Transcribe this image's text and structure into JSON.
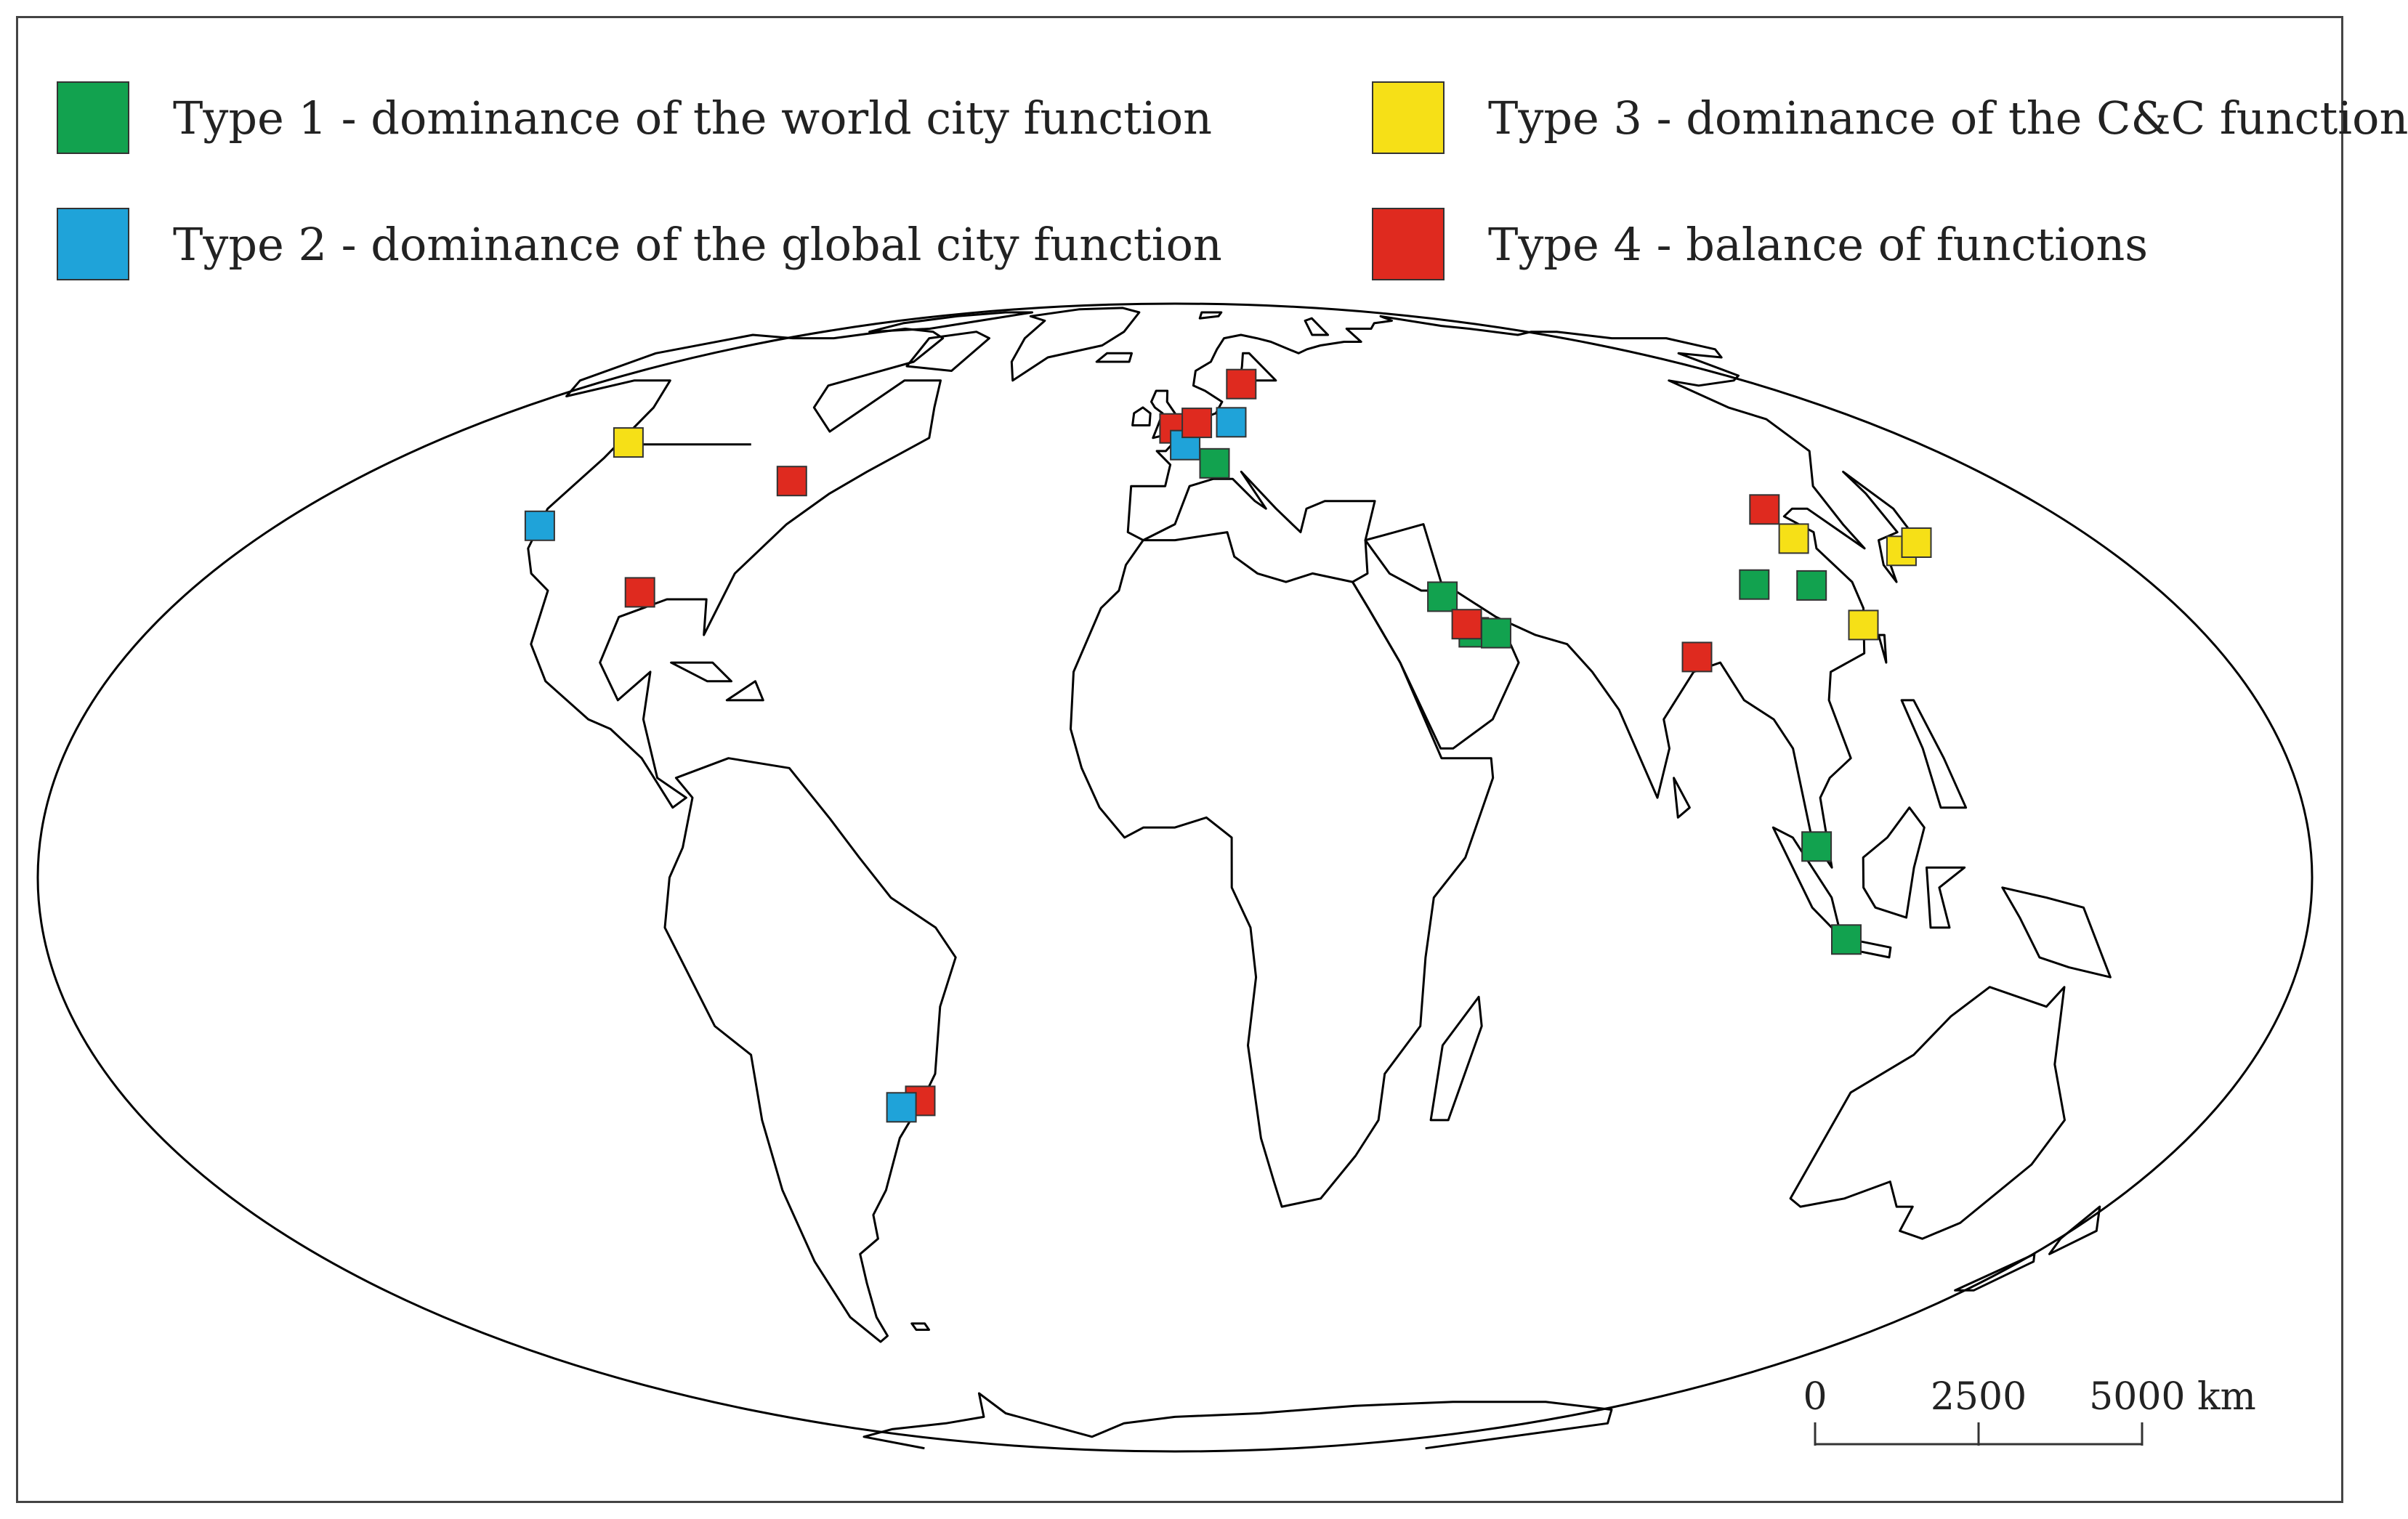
{
  "legend": {
    "items": [
      {
        "label": "Type 1 - dominance of the world city function",
        "color": "#12a24f"
      },
      {
        "label": "Type 2 - dominance of the global city function",
        "color": "#1fa3d9"
      },
      {
        "label": "Type 3 - dominance of the C&C function",
        "color": "#f6e017"
      },
      {
        "label": "Type 4 - balance of functions",
        "color": "#df2a1f"
      }
    ]
  },
  "scale_bar": {
    "labels": [
      "0",
      "2500",
      "5000 km"
    ]
  },
  "markers": [
    {
      "type": 3,
      "lon": -123.1,
      "lat": 49.3
    },
    {
      "type": 2,
      "lon": -122.4,
      "lat": 37.8
    },
    {
      "type": 4,
      "lon": -79.4,
      "lat": 43.7
    },
    {
      "type": 4,
      "lon": -95.4,
      "lat": 29.8
    },
    {
      "type": 4,
      "lon": -43.2,
      "lat": -22.9
    },
    {
      "type": 2,
      "lon": -46.6,
      "lat": -23.6
    },
    {
      "type": 4,
      "lon": -0.1,
      "lat": 51.5
    },
    {
      "type": 2,
      "lon": 2.3,
      "lat": 48.9
    },
    {
      "type": 4,
      "lon": 5.2,
      "lat": 52.4
    },
    {
      "type": 4,
      "lon": 18.1,
      "lat": 59.3
    },
    {
      "type": 2,
      "lon": 13.4,
      "lat": 52.5
    },
    {
      "type": 1,
      "lon": 8.5,
      "lat": 46.2
    },
    {
      "type": 1,
      "lon": 47.5,
      "lat": 29.3
    },
    {
      "type": 1,
      "lon": 51.5,
      "lat": 25.3
    },
    {
      "type": 4,
      "lon": 50.6,
      "lat": 26.2
    },
    {
      "type": 1,
      "lon": 55.3,
      "lat": 25.2
    },
    {
      "type": 4,
      "lon": 88.4,
      "lat": 22.6
    },
    {
      "type": 4,
      "lon": 116.4,
      "lat": 39.9
    },
    {
      "type": 3,
      "lon": 117.2,
      "lat": 36.2
    },
    {
      "type": 1,
      "lon": 104.1,
      "lat": 30.7
    },
    {
      "type": 1,
      "lon": 114.3,
      "lat": 30.6
    },
    {
      "type": 3,
      "lon": 119.3,
      "lat": 26.1
    },
    {
      "type": 3,
      "lon": 135.5,
      "lat": 34.7
    },
    {
      "type": 3,
      "lon": 139.7,
      "lat": 35.7
    },
    {
      "type": 1,
      "lon": 101.7,
      "lat": 3.1
    },
    {
      "type": 1,
      "lon": 106.8,
      "lat": -6.2
    }
  ]
}
